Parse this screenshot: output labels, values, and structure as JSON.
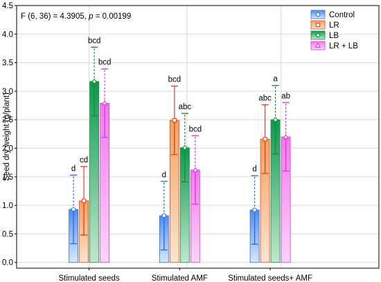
{
  "chart_data": {
    "type": "bar",
    "title": "",
    "annotation": {
      "prefix": "F (6, 36) = 4.3905, ",
      "p_symbol": "p",
      "suffix": " = 0.00199"
    },
    "xlabel": "",
    "ylabel": "Seed dry weight (g/plant)",
    "ylim": [
      -0.1,
      4.5
    ],
    "yticks": [
      "0.0",
      "0.5",
      "1.0",
      "1.5",
      "2.0",
      "2.5",
      "3.0",
      "3.5",
      "4.0",
      "4.5"
    ],
    "grid": true,
    "legend_position": "top-right",
    "categories": [
      "Stimulated seeds",
      "Stimulated AMF",
      "Stimulated seeds+ AMF"
    ],
    "series": [
      {
        "name": "Control",
        "color": "#2f6fd8",
        "fill_top": "#4d8ef0",
        "fill_bottom": "#d6e8fb",
        "marker": "circle",
        "dashed_whisker": true,
        "values": [
          0.93,
          0.82,
          0.92
        ],
        "se_low": [
          0.33,
          0.22,
          0.32
        ],
        "se_high": [
          0.93,
          0.82,
          0.92
        ],
        "sd_low": [
          0.93,
          0.82,
          0.92
        ],
        "sd_high": [
          1.53,
          1.42,
          1.52
        ],
        "letters": [
          "d",
          "d",
          "d"
        ]
      },
      {
        "name": "LR",
        "color": "#e0442a",
        "fill_top": "#f5a05a",
        "fill_bottom": "#fde5cf",
        "marker": "square",
        "dashed_whisker": false,
        "values": [
          1.08,
          2.49,
          2.16
        ],
        "se_low": [
          0.48,
          1.89,
          1.56
        ],
        "se_high": [
          1.08,
          2.49,
          2.16
        ],
        "sd_low": [
          1.08,
          2.49,
          2.16
        ],
        "sd_high": [
          1.68,
          3.09,
          2.76
        ],
        "letters": [
          "cd",
          "bcd",
          "abc"
        ]
      },
      {
        "name": "LB",
        "color": "#1b8c3a",
        "fill_top": "#0a9a4e",
        "fill_bottom": "#bfe9cc",
        "marker": "diamond",
        "dashed_whisker": true,
        "values": [
          3.17,
          2.01,
          2.5
        ],
        "se_low": [
          2.57,
          1.41,
          1.9
        ],
        "se_high": [
          3.17,
          2.01,
          2.5
        ],
        "sd_low": [
          3.17,
          2.01,
          2.5
        ],
        "sd_high": [
          3.77,
          2.61,
          3.1
        ],
        "letters": [
          "bcd",
          "abc",
          "a"
        ]
      },
      {
        "name": "LR + LB",
        "color": "#d63fd6",
        "fill_top": "#f577f0",
        "fill_bottom": "#fcd5f7",
        "marker": "triangle",
        "dashed_whisker": true,
        "values": [
          2.79,
          1.62,
          2.2
        ],
        "se_low": [
          2.19,
          1.02,
          1.6
        ],
        "se_high": [
          2.79,
          1.62,
          2.2
        ],
        "sd_low": [
          2.79,
          1.62,
          2.2
        ],
        "sd_high": [
          3.39,
          2.22,
          2.8
        ],
        "letters": [
          "bcd",
          "bcd",
          "ab"
        ]
      }
    ]
  }
}
